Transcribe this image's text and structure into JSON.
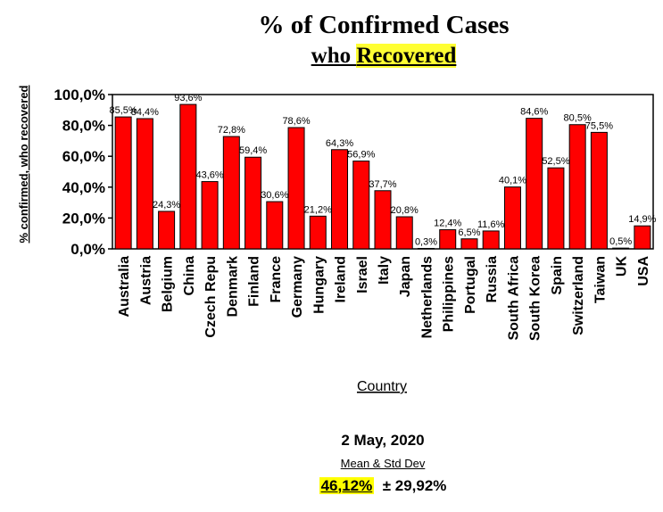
{
  "header": {
    "title": "% of Confirmed Cases",
    "subtitle_pre": "who ",
    "subtitle_highlight": "Recovered"
  },
  "footer": {
    "date": "2 May, 2020",
    "stat_label": "Mean & Std Dev",
    "mean": "46,12%",
    "std": "± 29,92%"
  },
  "colors": {
    "bar": "#ff0000",
    "highlight": "#ffff33"
  },
  "chart_data": {
    "type": "bar",
    "title": "% of Confirmed Cases who Recovered",
    "xlabel": "Country",
    "ylabel": "% confirmed, who recovered",
    "ylim": [
      0,
      100
    ],
    "yticks": [
      "0,0%",
      "20,0%",
      "40,0%",
      "60,0%",
      "80,0%",
      "100,0%"
    ],
    "grid": false,
    "categories": [
      "Australia",
      "Austria",
      "Belgium",
      "China",
      "Czech Repu",
      "Denmark",
      "Finland",
      "France",
      "Germany",
      "Hungary",
      "Ireland",
      "Israel",
      "Italy",
      "Japan",
      "Netherlands",
      "Philippines",
      "Portugal",
      "Russia",
      "South Africa",
      "South Korea",
      "Spain",
      "Switzerland",
      "Taiwan",
      "UK",
      "USA"
    ],
    "values": [
      85.5,
      84.4,
      24.3,
      93.6,
      43.6,
      72.8,
      59.4,
      30.6,
      78.6,
      21.2,
      64.3,
      56.9,
      37.7,
      20.8,
      0.3,
      12.4,
      6.5,
      11.6,
      40.1,
      84.6,
      52.5,
      80.5,
      75.5,
      0.5,
      14.9
    ],
    "labels": [
      "85,5%",
      "84,4%",
      "24,3%",
      "93,6%",
      "43,6%",
      "72,8%",
      "59,4%",
      "30,6%",
      "78,6%",
      "21,2%",
      "64,3%",
      "56,9%",
      "37,7%",
      "20,8%",
      "0,3%",
      "12,4%",
      "6,5%",
      "11,6%",
      "40,1%",
      "84,6%",
      "52,5%",
      "80,5%",
      "75,5%",
      "0,5%",
      "14,9%"
    ]
  }
}
